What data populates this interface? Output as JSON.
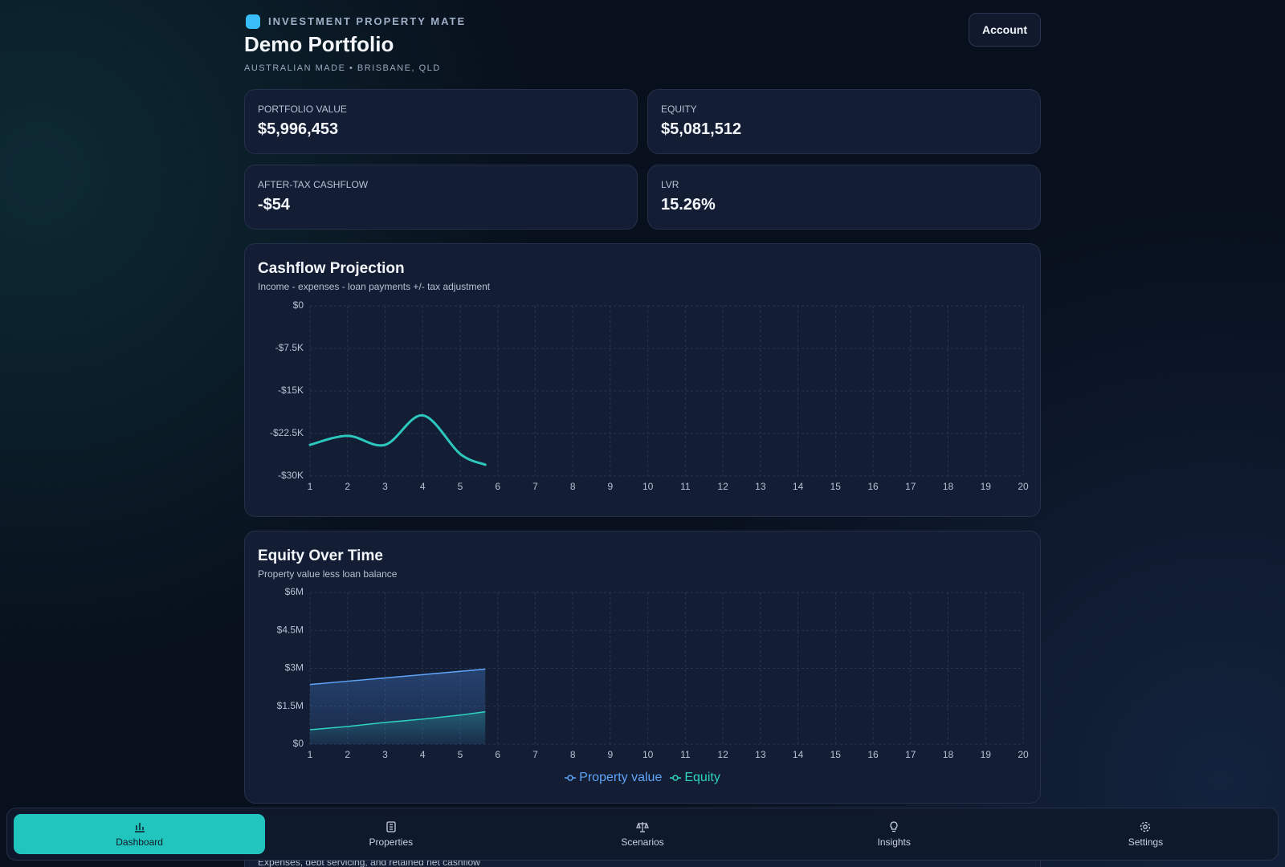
{
  "header": {
    "brand": "INVESTMENT PROPERTY MATE",
    "title": "Demo Portfolio",
    "subtitle": "AUSTRALIAN MADE • BRISBANE, QLD",
    "account": "Account"
  },
  "stats": [
    {
      "label": "PORTFOLIO VALUE",
      "value": "$5,996,453"
    },
    {
      "label": "EQUITY",
      "value": "$5,081,512"
    },
    {
      "label": "AFTER-TAX CASHFLOW",
      "value": "-$54"
    },
    {
      "label": "LVR",
      "value": "15.26%"
    }
  ],
  "charts": [
    {
      "type": "line",
      "title": "Cashflow Projection",
      "subtitle": "Income - expenses - loan payments +/- tax adjustment",
      "x": [
        1,
        2,
        3,
        4,
        5,
        5.67
      ],
      "xlim": [
        1,
        20
      ],
      "xticks": [
        1,
        2,
        3,
        4,
        5,
        6,
        7,
        8,
        9,
        10,
        11,
        12,
        13,
        14,
        15,
        16,
        17,
        18,
        19,
        20
      ],
      "ylim": [
        -30000,
        0
      ],
      "yticks": [
        {
          "value": 0,
          "label": "$0"
        },
        {
          "value": -7500,
          "label": "-$7.5K"
        },
        {
          "value": -15000,
          "label": "-$15K"
        },
        {
          "value": -22500,
          "label": "-$22.5K"
        },
        {
          "value": -30000,
          "label": "-$30K"
        }
      ],
      "grid": true,
      "series": [
        {
          "color": "#2cc7bd",
          "values": [
            -24500,
            -22900,
            -24500,
            -19300,
            -26100,
            -28000
          ]
        }
      ]
    },
    {
      "type": "area",
      "title": "Equity Over Time",
      "subtitle": "Property value less loan balance",
      "x": [
        1,
        2,
        3,
        4,
        5,
        5.67
      ],
      "xlim": [
        1,
        20
      ],
      "xticks": [
        1,
        2,
        3,
        4,
        5,
        6,
        7,
        8,
        9,
        10,
        11,
        12,
        13,
        14,
        15,
        16,
        17,
        18,
        19,
        20
      ],
      "ylim": [
        0,
        6000000
      ],
      "yticks": [
        {
          "value": 0,
          "label": "$0"
        },
        {
          "value": 1500000,
          "label": "$1.5M"
        },
        {
          "value": 3000000,
          "label": "$3M"
        },
        {
          "value": 4500000,
          "label": "$4.5M"
        },
        {
          "value": 6000000,
          "label": "$6M"
        }
      ],
      "grid": true,
      "legend": "bottom",
      "series": [
        {
          "name": "Property value",
          "color": "#60a5fa",
          "values": [
            2360000,
            2490000,
            2620000,
            2750000,
            2880000,
            2970000
          ]
        },
        {
          "name": "Equity",
          "color": "#2dd4bf",
          "values": [
            570000,
            700000,
            860000,
            990000,
            1150000,
            1280000
          ]
        }
      ]
    }
  ],
  "next_card": {
    "subtitle": "Expenses, debt servicing, and retained net cashflow"
  },
  "nav": [
    {
      "label": "Dashboard",
      "active": true
    },
    {
      "label": "Properties",
      "active": false
    },
    {
      "label": "Scenarios",
      "active": false
    },
    {
      "label": "Insights",
      "active": false
    },
    {
      "label": "Settings",
      "active": false
    }
  ]
}
